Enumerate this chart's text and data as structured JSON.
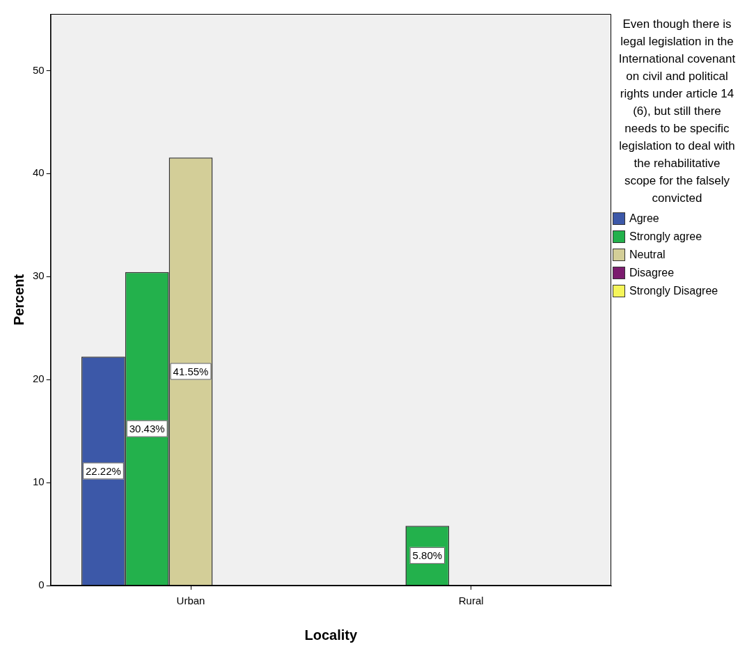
{
  "chart_data": {
    "type": "bar",
    "xlabel": "Locality",
    "ylabel": "Percent",
    "legend_title": "Even though there is legal legislation in the International covenant on civil and political rights under article 14 (6), but still there needs to be specific legislation to deal with the rehabilitative scope for the falsely convicted",
    "categories": [
      "Urban",
      "Rural"
    ],
    "series": [
      {
        "name": "Agree",
        "color": "#3c58a8",
        "values": [
          22.22,
          null
        ],
        "value_labels": [
          "22.22%",
          null
        ]
      },
      {
        "name": "Strongly agree",
        "color": "#23b14c",
        "values": [
          30.43,
          5.8
        ],
        "value_labels": [
          "30.43%",
          "5.80%"
        ]
      },
      {
        "name": "Neutral",
        "color": "#d3ce98",
        "values": [
          41.55,
          null
        ],
        "value_labels": [
          "41.55%",
          null
        ]
      },
      {
        "name": "Disagree",
        "color": "#7b1c6e",
        "values": [
          null,
          null
        ]
      },
      {
        "name": "Strongly Disagree",
        "color": "#f5f55a",
        "values": [
          null,
          null
        ]
      }
    ],
    "ylim": [
      0,
      55.5
    ],
    "yticks": [
      0,
      10,
      20,
      30,
      40,
      50
    ],
    "grid": false,
    "legend": "right"
  }
}
